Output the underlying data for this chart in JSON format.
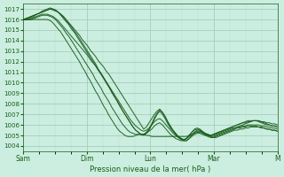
{
  "title": "",
  "xlabel": "Pression niveau de la mer( hPa )",
  "ylabel": "",
  "bg_color": "#cbeee0",
  "grid_color_major": "#9dc9b8",
  "grid_color_minor": "#b8ddd0",
  "line_color": "#1a5c1a",
  "ylim": [
    1003.5,
    1017.5
  ],
  "yticks": [
    1004,
    1005,
    1006,
    1007,
    1008,
    1009,
    1010,
    1011,
    1012,
    1013,
    1014,
    1015,
    1016,
    1017
  ],
  "day_labels": [
    "Sam",
    "Dim",
    "Lun",
    "Mar",
    "M"
  ],
  "day_positions": [
    0,
    24,
    48,
    72,
    96
  ],
  "total_hours": 96,
  "lines": [
    [
      1016.0,
      1016.1,
      1016.2,
      1016.3,
      1016.4,
      1016.5,
      1016.6,
      1016.7,
      1016.8,
      1016.9,
      1017.0,
      1016.9,
      1016.8,
      1016.7,
      1016.5,
      1016.3,
      1016.0,
      1015.7,
      1015.4,
      1015.1,
      1014.8,
      1014.5,
      1014.1,
      1013.8,
      1013.5,
      1013.1,
      1012.8,
      1012.5,
      1012.1,
      1011.8,
      1011.5,
      1011.1,
      1010.8,
      1010.4,
      1010.0,
      1009.6,
      1009.2,
      1008.8,
      1008.4,
      1008.0,
      1007.6,
      1007.2,
      1006.8,
      1006.4,
      1006.0,
      1005.6,
      1005.8,
      1006.2,
      1006.6,
      1007.0,
      1007.3,
      1007.5,
      1007.2,
      1006.8,
      1006.3,
      1005.9,
      1005.5,
      1005.2,
      1004.9,
      1004.7,
      1004.6,
      1004.7,
      1005.0,
      1005.3,
      1005.5,
      1005.6,
      1005.5,
      1005.3,
      1005.1,
      1005.0,
      1005.0,
      1005.1,
      1005.2,
      1005.3,
      1005.4,
      1005.5,
      1005.6,
      1005.7,
      1005.8,
      1005.9,
      1006.0,
      1006.1,
      1006.2,
      1006.2,
      1006.3,
      1006.3,
      1006.4,
      1006.4,
      1006.4,
      1006.3,
      1006.3,
      1006.2,
      1006.2,
      1006.1,
      1006.1,
      1006.0
    ],
    [
      1016.0,
      1016.0,
      1016.0,
      1016.1,
      1016.2,
      1016.3,
      1016.4,
      1016.5,
      1016.5,
      1016.5,
      1016.4,
      1016.3,
      1016.1,
      1015.9,
      1015.6,
      1015.3,
      1015.0,
      1014.7,
      1014.4,
      1014.1,
      1013.8,
      1013.5,
      1013.2,
      1012.9,
      1012.6,
      1012.2,
      1011.9,
      1011.6,
      1011.2,
      1010.9,
      1010.5,
      1010.1,
      1009.7,
      1009.3,
      1008.9,
      1008.5,
      1008.1,
      1007.7,
      1007.3,
      1006.9,
      1006.5,
      1006.2,
      1005.9,
      1005.7,
      1005.5,
      1005.4,
      1005.5,
      1005.7,
      1006.0,
      1006.3,
      1006.5,
      1006.6,
      1006.4,
      1006.1,
      1005.8,
      1005.5,
      1005.2,
      1005.0,
      1004.8,
      1004.7,
      1004.6,
      1004.7,
      1004.9,
      1005.1,
      1005.3,
      1005.4,
      1005.4,
      1005.3,
      1005.2,
      1005.1,
      1005.0,
      1005.0,
      1005.1,
      1005.2,
      1005.3,
      1005.4,
      1005.5,
      1005.6,
      1005.7,
      1005.7,
      1005.8,
      1005.8,
      1005.9,
      1005.9,
      1006.0,
      1006.0,
      1006.0,
      1006.0,
      1006.0,
      1005.9,
      1005.9,
      1005.8,
      1005.8,
      1005.7,
      1005.7,
      1005.6
    ],
    [
      1016.0,
      1016.1,
      1016.2,
      1016.3,
      1016.4,
      1016.5,
      1016.6,
      1016.7,
      1016.8,
      1016.9,
      1017.0,
      1017.0,
      1016.9,
      1016.7,
      1016.4,
      1016.1,
      1015.8,
      1015.5,
      1015.1,
      1014.8,
      1014.4,
      1014.0,
      1013.6,
      1013.2,
      1012.8,
      1012.4,
      1012.0,
      1011.6,
      1011.2,
      1010.8,
      1010.4,
      1010.0,
      1009.6,
      1009.1,
      1008.7,
      1008.3,
      1007.8,
      1007.4,
      1007.0,
      1006.6,
      1006.2,
      1005.8,
      1005.5,
      1005.3,
      1005.1,
      1005.0,
      1005.2,
      1005.5,
      1006.0,
      1006.5,
      1007.0,
      1007.3,
      1007.0,
      1006.6,
      1006.1,
      1005.7,
      1005.4,
      1005.1,
      1004.9,
      1004.7,
      1004.6,
      1004.7,
      1005.0,
      1005.3,
      1005.6,
      1005.7,
      1005.6,
      1005.4,
      1005.2,
      1005.1,
      1005.0,
      1005.1,
      1005.2,
      1005.3,
      1005.4,
      1005.5,
      1005.6,
      1005.7,
      1005.8,
      1005.9,
      1006.0,
      1006.1,
      1006.2,
      1006.3,
      1006.4,
      1006.4,
      1006.4,
      1006.4,
      1006.3,
      1006.2,
      1006.1,
      1006.0,
      1006.0,
      1005.9,
      1005.9,
      1005.8
    ],
    [
      1016.0,
      1016.0,
      1016.1,
      1016.2,
      1016.3,
      1016.5,
      1016.6,
      1016.8,
      1016.9,
      1017.0,
      1017.1,
      1017.0,
      1016.9,
      1016.7,
      1016.5,
      1016.2,
      1015.9,
      1015.6,
      1015.3,
      1014.9,
      1014.6,
      1014.2,
      1013.8,
      1013.4,
      1013.0,
      1012.6,
      1012.2,
      1011.8,
      1011.3,
      1010.9,
      1010.5,
      1010.0,
      1009.6,
      1009.2,
      1008.7,
      1008.3,
      1007.9,
      1007.4,
      1007.0,
      1006.6,
      1006.2,
      1005.8,
      1005.5,
      1005.3,
      1005.1,
      1005.1,
      1005.3,
      1005.6,
      1006.1,
      1006.7,
      1007.1,
      1007.4,
      1007.2,
      1006.8,
      1006.3,
      1005.8,
      1005.4,
      1005.1,
      1004.8,
      1004.6,
      1004.5,
      1004.5,
      1004.7,
      1005.0,
      1005.3,
      1005.5,
      1005.5,
      1005.3,
      1005.1,
      1005.0,
      1004.9,
      1004.9,
      1005.0,
      1005.1,
      1005.2,
      1005.3,
      1005.4,
      1005.5,
      1005.6,
      1005.7,
      1005.8,
      1005.9,
      1006.0,
      1006.1,
      1006.2,
      1006.3,
      1006.4,
      1006.4,
      1006.4,
      1006.3,
      1006.2,
      1006.1,
      1006.0,
      1005.9,
      1005.9,
      1005.8
    ],
    [
      1016.0,
      1016.0,
      1016.0,
      1016.0,
      1016.1,
      1016.2,
      1016.3,
      1016.4,
      1016.4,
      1016.4,
      1016.3,
      1016.2,
      1016.0,
      1015.7,
      1015.4,
      1015.1,
      1014.7,
      1014.4,
      1014.0,
      1013.6,
      1013.2,
      1012.8,
      1012.4,
      1012.0,
      1011.6,
      1011.2,
      1010.8,
      1010.3,
      1009.9,
      1009.5,
      1009.0,
      1008.6,
      1008.2,
      1007.7,
      1007.3,
      1006.9,
      1006.5,
      1006.1,
      1005.8,
      1005.5,
      1005.3,
      1005.2,
      1005.1,
      1005.1,
      1005.1,
      1005.1,
      1005.2,
      1005.4,
      1005.6,
      1005.9,
      1006.1,
      1006.2,
      1006.0,
      1005.7,
      1005.4,
      1005.1,
      1004.9,
      1004.7,
      1004.6,
      1004.5,
      1004.5,
      1004.5,
      1004.7,
      1004.9,
      1005.1,
      1005.2,
      1005.2,
      1005.1,
      1005.0,
      1004.9,
      1004.8,
      1004.8,
      1004.9,
      1005.0,
      1005.1,
      1005.2,
      1005.3,
      1005.4,
      1005.5,
      1005.6,
      1005.7,
      1005.7,
      1005.8,
      1005.8,
      1005.9,
      1005.9,
      1005.9,
      1005.9,
      1005.8,
      1005.8,
      1005.7,
      1005.6,
      1005.6,
      1005.5,
      1005.5,
      1005.4
    ],
    [
      1016.0,
      1016.0,
      1016.0,
      1016.0,
      1016.0,
      1016.0,
      1016.0,
      1016.0,
      1016.0,
      1016.0,
      1015.9,
      1015.7,
      1015.4,
      1015.1,
      1014.8,
      1014.4,
      1014.0,
      1013.6,
      1013.2,
      1012.8,
      1012.4,
      1012.0,
      1011.5,
      1011.1,
      1010.6,
      1010.2,
      1009.7,
      1009.2,
      1008.8,
      1008.3,
      1007.8,
      1007.4,
      1006.9,
      1006.5,
      1006.1,
      1005.7,
      1005.4,
      1005.2,
      1005.0,
      1004.9,
      1004.9,
      1004.9,
      1005.0,
      1005.1,
      1005.1,
      1005.1,
      1005.0,
      1005.0,
      1004.9,
      1004.9,
      1004.9,
      1004.9,
      1004.9,
      1004.9,
      1004.9,
      1004.9,
      1004.9,
      1004.9,
      1004.9,
      1004.9,
      1004.9,
      1004.9,
      1005.0,
      1005.1,
      1005.2,
      1005.3,
      1005.3,
      1005.2,
      1005.1,
      1005.0,
      1004.9,
      1004.8,
      1004.8,
      1004.9,
      1005.0,
      1005.1,
      1005.2,
      1005.3,
      1005.4,
      1005.5,
      1005.5,
      1005.6,
      1005.6,
      1005.7,
      1005.7,
      1005.8,
      1005.8,
      1005.8,
      1005.8,
      1005.7,
      1005.7,
      1005.6,
      1005.6,
      1005.5,
      1005.5,
      1005.4
    ]
  ]
}
